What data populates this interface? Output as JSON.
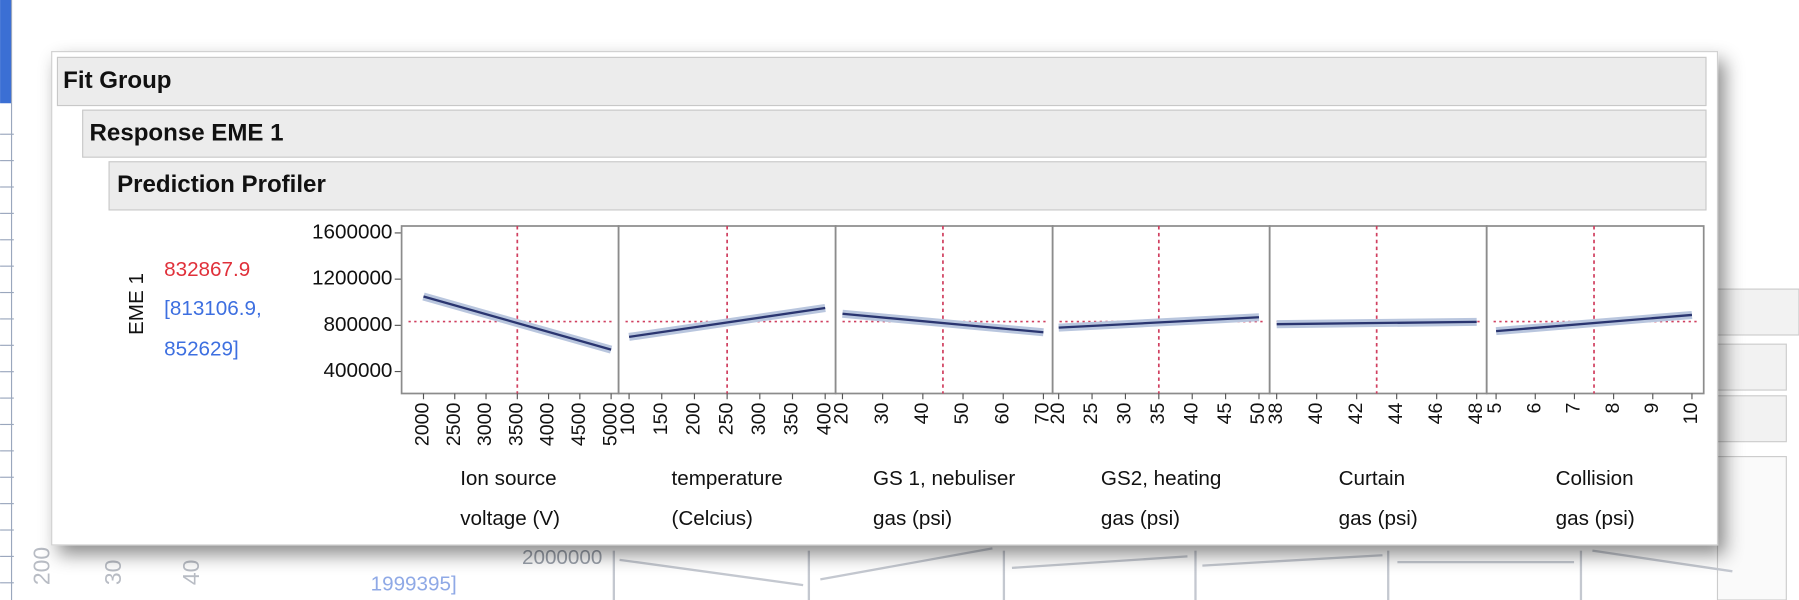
{
  "header": {
    "fit_group": "Fit Group",
    "response": "Response EME 1",
    "profiler": "Prediction Profiler"
  },
  "background_texts": [
    "200",
    "30",
    "40",
    "2000000",
    "1999395]"
  ],
  "chart_data": {
    "type": "profiler",
    "y_label": "EME 1",
    "predicted": 832867.9,
    "interval_lines": [
      "[813106.9,",
      "852629]"
    ],
    "ylim": [
      210000,
      1660000
    ],
    "yticks": [
      400000,
      800000,
      1200000,
      1600000
    ],
    "panels": [
      {
        "label_lines": [
          "Ion source",
          "voltage (V)"
        ],
        "xlim": [
          1650,
          5120
        ],
        "xticks": [
          2000,
          2500,
          3000,
          3500,
          4000,
          4500,
          5000
        ],
        "current": 3500,
        "x": [
          2000,
          5000
        ],
        "y": [
          1050000,
          590000
        ]
      },
      {
        "label_lines": [
          "temperature",
          "(Celcius)"
        ],
        "xlim": [
          84,
          416
        ],
        "xticks": [
          100,
          150,
          200,
          250,
          300,
          350,
          400
        ],
        "current": 250,
        "x": [
          100,
          400
        ],
        "y": [
          700000,
          950000
        ]
      },
      {
        "label_lines": [
          "GS 1, nebuliser",
          "gas (psi)"
        ],
        "xlim": [
          18.3,
          72.3
        ],
        "xticks": [
          20,
          30,
          40,
          50,
          60,
          70
        ],
        "current": 45,
        "x": [
          20,
          70
        ],
        "y": [
          900000,
          740000
        ]
      },
      {
        "label_lines": [
          "GS2, heating",
          "gas (psi)"
        ],
        "xlim": [
          19.1,
          51.6
        ],
        "xticks": [
          20,
          25,
          30,
          35,
          40,
          45,
          50
        ],
        "current": 35,
        "x": [
          20,
          50
        ],
        "y": [
          780000,
          870000
        ]
      },
      {
        "label_lines": [
          "Curtain",
          "gas (psi)"
        ],
        "xlim": [
          37.65,
          48.5
        ],
        "xticks": [
          38,
          40,
          42,
          44,
          46,
          48
        ],
        "current": 43,
        "x": [
          38,
          48
        ],
        "y": [
          810000,
          830000
        ]
      },
      {
        "label_lines": [
          "Collision",
          "gas (psi)"
        ],
        "xlim": [
          4.76,
          10.3
        ],
        "xticks": [
          5,
          6,
          7,
          8,
          9,
          10
        ],
        "current": 7.5,
        "x": [
          5,
          10
        ],
        "y": [
          750000,
          890000
        ]
      }
    ]
  }
}
